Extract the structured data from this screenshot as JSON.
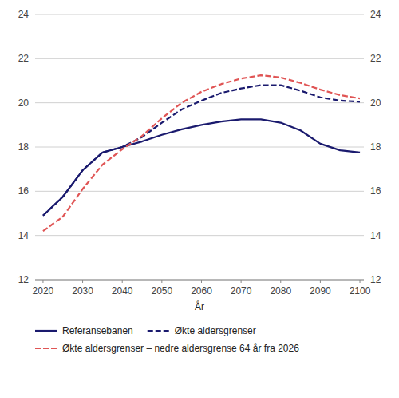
{
  "chart_data": {
    "type": "line",
    "x": [
      2020,
      2025,
      2030,
      2035,
      2040,
      2045,
      2050,
      2055,
      2060,
      2065,
      2070,
      2075,
      2080,
      2085,
      2090,
      2095,
      2100
    ],
    "series": [
      {
        "name": "Referansebanen",
        "color": "#1a1a6e",
        "line_style": "solid",
        "values": [
          14.9,
          15.75,
          16.95,
          17.75,
          18.0,
          18.25,
          18.55,
          18.8,
          19.0,
          19.15,
          19.25,
          19.25,
          19.1,
          18.75,
          18.15,
          17.85,
          17.75
        ]
      },
      {
        "name": "Økte aldersgrenser",
        "color": "#1a1a6e",
        "line_style": "dashed",
        "values": [
          14.9,
          15.75,
          16.95,
          17.75,
          18.0,
          18.45,
          19.1,
          19.7,
          20.1,
          20.45,
          20.65,
          20.8,
          20.8,
          20.55,
          20.25,
          20.1,
          20.05
        ]
      },
      {
        "name": "Økte aldersgrenser – nedre aldersgrense 64 år fra 2026",
        "color": "#e05555",
        "line_style": "dashed",
        "values": [
          14.2,
          14.85,
          16.1,
          17.2,
          17.9,
          18.5,
          19.3,
          20.0,
          20.5,
          20.85,
          21.1,
          21.25,
          21.15,
          20.9,
          20.6,
          20.35,
          20.2
        ]
      }
    ],
    "xlabel": "År",
    "xlim": [
      2018,
      2101
    ],
    "xticks": [
      2020,
      2030,
      2040,
      2050,
      2060,
      2070,
      2080,
      2090,
      2100
    ],
    "ylim": [
      12,
      24
    ],
    "yticks": [
      12,
      14,
      16,
      18,
      20,
      22,
      24
    ],
    "y2lim": [
      12,
      24
    ],
    "y2ticks": [
      12,
      14,
      16,
      18,
      20,
      22,
      24
    ],
    "grid": true,
    "legend": "bottom"
  }
}
